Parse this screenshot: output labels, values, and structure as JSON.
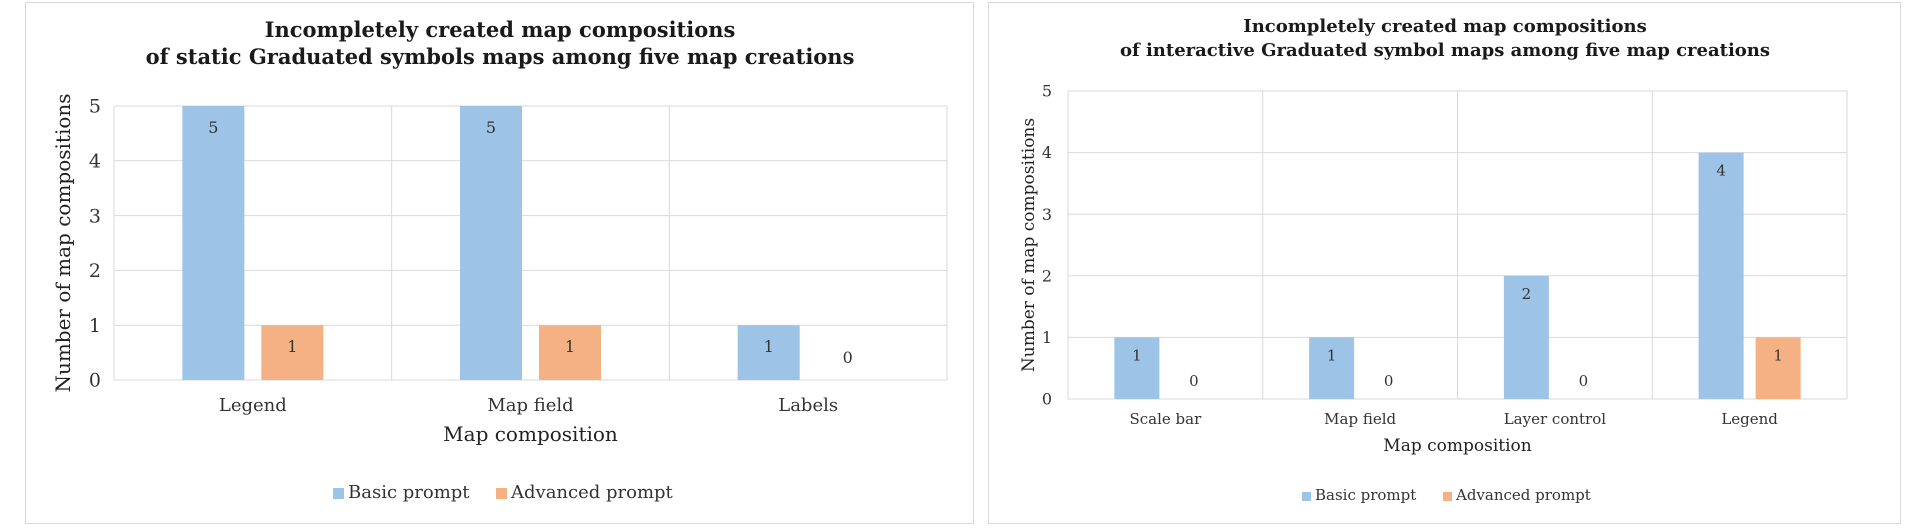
{
  "chart_data": [
    {
      "type": "bar",
      "title_lines": [
        "Incompletely created map compositions",
        "of static Graduated symbols maps among five map creations"
      ],
      "xlabel": "Map composition",
      "ylabel": "Number of map compositions",
      "categories": [
        "Legend",
        "Map field",
        "Labels"
      ],
      "series": [
        {
          "name": "Basic prompt",
          "values": [
            5,
            5,
            1
          ],
          "color": "#9dc3e6"
        },
        {
          "name": "Advanced prompt",
          "values": [
            1,
            1,
            0
          ],
          "color": "#f4b183"
        }
      ],
      "yticks": [
        0,
        1,
        2,
        3,
        4,
        5
      ],
      "ylim": [
        0,
        5
      ],
      "grid": true,
      "legend": "bottom"
    },
    {
      "type": "bar",
      "title_lines": [
        "Incompletely created map compositions",
        "of interactive Graduated symbol maps among five map creations"
      ],
      "xlabel": "Map composition",
      "ylabel": "Number of map compositions",
      "categories": [
        "Scale bar",
        "Map field",
        "Layer control",
        "Legend"
      ],
      "series": [
        {
          "name": "Basic prompt",
          "values": [
            1,
            1,
            2,
            4
          ],
          "color": "#9dc3e6"
        },
        {
          "name": "Advanced prompt",
          "values": [
            0,
            0,
            0,
            1
          ],
          "color": "#f4b183"
        }
      ],
      "yticks": [
        0,
        1,
        2,
        3,
        4,
        5
      ],
      "ylim": [
        0,
        5
      ],
      "grid": true,
      "legend": "bottom"
    }
  ]
}
